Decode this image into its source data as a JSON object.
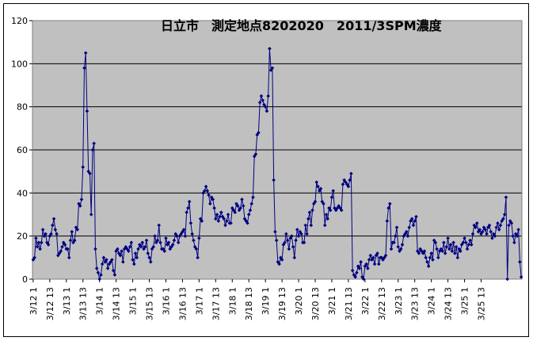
{
  "chart_data": {
    "type": "line",
    "title": "日立市　測定地点8202020　2011/3SPM濃度",
    "xlabel": "",
    "ylabel": "",
    "ylim": [
      0,
      120
    ],
    "yticks": [
      0,
      20,
      40,
      60,
      80,
      100,
      120
    ],
    "grid": true,
    "legend": "none",
    "colors": {
      "series": "#000080",
      "plot_bg": "#c0c0c0",
      "gridline": "#000000"
    },
    "x_start": "3/12 1:00",
    "x_step_hours": 1,
    "x_tick_labels": [
      "3/12 1",
      "3/12 13",
      "3/13 1",
      "3/13 13",
      "3/14 1",
      "3/14 13",
      "3/15 1",
      "3/15 13",
      "3/16 1",
      "3/16 13",
      "3/17 1",
      "3/17 13",
      "3/18 1",
      "3/18 13",
      "3/19 1",
      "3/19 13",
      "3/20 1",
      "3/20 13",
      "3/21 1",
      "3/21 13",
      "3/22 1",
      "3/22 13",
      "3/23 1",
      "3/23 13",
      "3/24 1",
      "3/24 13",
      "3/25 1",
      "3/25 13"
    ],
    "series": [
      {
        "name": "",
        "values": [
          9,
          10,
          19,
          15,
          17,
          14,
          17,
          23,
          20,
          21,
          17,
          16,
          20,
          21,
          25,
          28,
          23,
          21,
          11,
          12,
          13,
          15,
          17,
          16,
          14,
          14,
          10,
          18,
          22,
          17,
          18,
          24,
          23,
          35,
          34,
          37,
          52,
          98,
          105,
          78,
          50,
          49,
          30,
          60,
          63,
          14,
          5,
          3,
          0,
          2,
          7,
          10,
          8,
          9,
          5,
          7,
          8,
          9,
          4,
          2,
          13,
          14,
          12,
          11,
          13,
          8,
          14,
          15,
          14,
          13,
          15,
          17,
          9,
          7,
          12,
          10,
          14,
          16,
          15,
          17,
          14,
          15,
          18,
          12,
          10,
          8,
          14,
          15,
          20,
          17,
          18,
          25,
          17,
          14,
          14,
          13,
          19,
          16,
          17,
          14,
          15,
          16,
          18,
          21,
          20,
          17,
          20,
          21,
          22,
          23,
          20,
          31,
          33,
          36,
          26,
          21,
          18,
          15,
          14,
          10,
          19,
          28,
          27,
          40,
          41,
          43,
          41,
          39,
          35,
          38,
          37,
          33,
          28,
          30,
          27,
          29,
          31,
          29,
          28,
          25,
          27,
          30,
          26,
          26,
          33,
          32,
          31,
          35,
          34,
          32,
          33,
          37,
          34,
          28,
          27,
          26,
          30,
          32,
          35,
          38,
          57,
          58,
          67,
          68,
          82,
          85,
          83,
          81,
          80,
          78,
          85,
          107,
          97,
          98,
          46,
          22,
          18,
          8,
          7,
          10,
          9,
          16,
          17,
          21,
          18,
          14,
          19,
          20,
          15,
          10,
          18,
          23,
          20,
          22,
          21,
          17,
          17,
          25,
          21,
          28,
          31,
          25,
          32,
          35,
          36,
          45,
          43,
          41,
          42,
          36,
          35,
          25,
          30,
          28,
          33,
          32,
          38,
          41,
          33,
          32,
          33,
          34,
          33,
          32,
          44,
          46,
          45,
          44,
          43,
          46,
          49,
          4,
          2,
          1,
          3,
          6,
          5,
          8,
          1,
          0,
          6,
          7,
          5,
          9,
          11,
          9,
          10,
          7,
          11,
          12,
          7,
          10,
          10,
          9,
          10,
          11,
          27,
          33,
          35,
          14,
          17,
          17,
          20,
          24,
          15,
          13,
          14,
          16,
          20,
          21,
          22,
          20,
          24,
          27,
          28,
          25,
          27,
          29,
          13,
          12,
          14,
          13,
          12,
          13,
          10,
          8,
          6,
          10,
          12,
          9,
          18,
          17,
          14,
          10,
          13,
          14,
          13,
          17,
          12,
          15,
          19,
          14,
          16,
          13,
          17,
          12,
          15,
          10,
          14,
          13,
          16,
          17,
          19,
          17,
          14,
          16,
          18,
          16,
          21,
          25,
          24,
          26,
          22,
          23,
          21,
          22,
          24,
          23,
          21,
          24,
          25,
          22,
          19,
          21,
          20,
          24,
          26,
          23,
          25,
          27,
          28,
          30,
          38,
          0,
          25,
          27,
          26,
          20,
          17,
          21,
          20,
          23,
          8,
          1
        ]
      }
    ]
  }
}
